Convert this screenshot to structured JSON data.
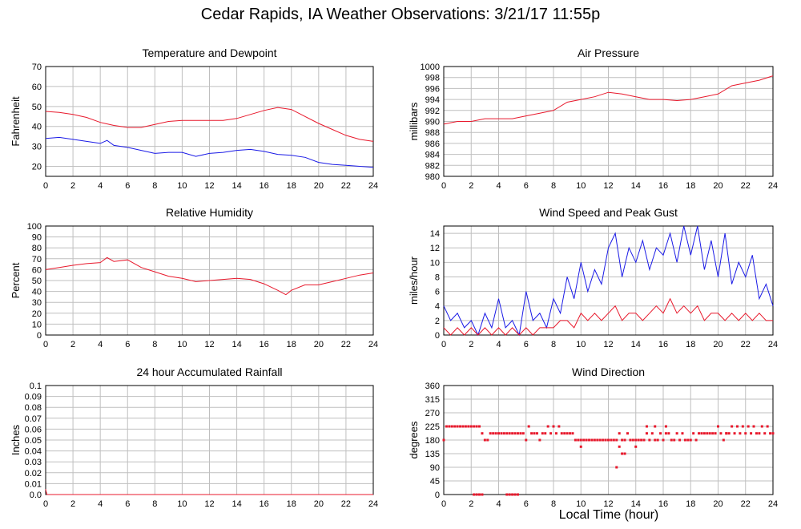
{
  "title": "Cedar Rapids, IA Weather Observations: 3/21/17 11:55p",
  "xaxis_label": "Local Time (hour)",
  "colors": {
    "red": "#e8192c",
    "blue": "#1a1ae6",
    "grid": "#bfbfbf"
  },
  "chart_data": [
    {
      "type": "line",
      "title": "Temperature and Dewpoint",
      "ylabel": "Fahrenheit",
      "xlim": [
        0,
        24
      ],
      "ylim": [
        15,
        70
      ],
      "yticks": [
        20,
        30,
        40,
        50,
        60,
        70
      ],
      "xticks": [
        0,
        2,
        4,
        6,
        8,
        10,
        12,
        14,
        16,
        18,
        20,
        22,
        24
      ],
      "grid": true,
      "series": [
        {
          "color": "red",
          "x": [
            0,
            1,
            2,
            3,
            4,
            5,
            6,
            7,
            8,
            9,
            10,
            11,
            12,
            13,
            14,
            15,
            16,
            17,
            18,
            19,
            20,
            21,
            22,
            23,
            24
          ],
          "y": [
            47.5,
            47,
            46,
            44.5,
            42,
            40.5,
            39.5,
            39.5,
            41,
            42.5,
            43,
            43,
            43,
            43,
            44,
            46,
            48,
            49.5,
            48.5,
            45,
            41.5,
            38.5,
            35.5,
            33.5,
            32.5
          ]
        },
        {
          "color": "blue",
          "x": [
            0,
            1,
            2,
            3,
            4,
            4.5,
            5,
            6,
            7,
            8,
            9,
            10,
            11,
            12,
            13,
            14,
            15,
            16,
            17,
            18,
            19,
            20,
            21,
            22,
            23,
            24
          ],
          "y": [
            34,
            34.5,
            33.5,
            32.5,
            31.5,
            33,
            30.5,
            29.5,
            28,
            26.5,
            27,
            27,
            25,
            26.5,
            27,
            28,
            28.5,
            27.5,
            26,
            25.5,
            24.5,
            22,
            21,
            20.5,
            20,
            19.5
          ]
        }
      ]
    },
    {
      "type": "line",
      "title": "Air Pressure",
      "ylabel": "millibars",
      "xlim": [
        0,
        24
      ],
      "ylim": [
        980,
        1000
      ],
      "yticks": [
        980,
        982,
        984,
        986,
        988,
        990,
        992,
        994,
        996,
        998,
        1000
      ],
      "xticks": [
        0,
        2,
        4,
        6,
        8,
        10,
        12,
        14,
        16,
        18,
        20,
        22,
        24
      ],
      "grid": true,
      "series": [
        {
          "color": "red",
          "x": [
            0,
            1,
            2,
            3,
            4,
            5,
            6,
            7,
            8,
            9,
            10,
            11,
            12,
            13,
            14,
            15,
            16,
            17,
            18,
            19,
            20,
            21,
            22,
            23,
            24
          ],
          "y": [
            989.5,
            990,
            990,
            990.5,
            990.5,
            990.5,
            991,
            991.5,
            992,
            993.5,
            994,
            994.5,
            995.3,
            995,
            994.5,
            994,
            994,
            993.8,
            994,
            994.5,
            995,
            996.5,
            997,
            997.5,
            998.3
          ]
        }
      ]
    },
    {
      "type": "line",
      "title": "Relative Humidity",
      "ylabel": "Percent",
      "xlim": [
        0,
        24
      ],
      "ylim": [
        0,
        100
      ],
      "yticks": [
        0,
        10,
        20,
        30,
        40,
        50,
        60,
        70,
        80,
        90,
        100
      ],
      "xticks": [
        0,
        2,
        4,
        6,
        8,
        10,
        12,
        14,
        16,
        18,
        20,
        22,
        24
      ],
      "grid": true,
      "series": [
        {
          "color": "red",
          "x": [
            0,
            1,
            2,
            3,
            4,
            4.5,
            5,
            6,
            7,
            8,
            9,
            10,
            11,
            12,
            13,
            14,
            15,
            16,
            17,
            17.6,
            18,
            19,
            20,
            21,
            22,
            23,
            24
          ],
          "y": [
            60,
            62,
            64,
            65.5,
            66.5,
            71,
            67.5,
            69,
            62,
            58,
            54,
            52,
            49,
            50,
            51,
            52,
            51,
            47,
            41,
            37,
            41,
            46,
            46,
            49,
            52,
            55,
            57
          ]
        }
      ]
    },
    {
      "type": "line",
      "title": "Wind Speed and Peak Gust",
      "ylabel": "miles/hour",
      "xlim": [
        0,
        24
      ],
      "ylim": [
        0,
        15
      ],
      "yticks": [
        0,
        2,
        4,
        6,
        8,
        10,
        12,
        14
      ],
      "xticks": [
        0,
        2,
        4,
        6,
        8,
        10,
        12,
        14,
        16,
        18,
        20,
        22,
        24
      ],
      "grid": true,
      "series": [
        {
          "color": "blue",
          "x": [
            0,
            0.5,
            1,
            1.5,
            2,
            2.5,
            3,
            3.5,
            4,
            4.5,
            5,
            5.5,
            6,
            6.5,
            7,
            7.5,
            8,
            8.5,
            9,
            9.5,
            10,
            10.5,
            11,
            11.5,
            12,
            12.5,
            13,
            13.5,
            14,
            14.5,
            15,
            15.5,
            16,
            16.5,
            17,
            17.5,
            18,
            18.5,
            19,
            19.5,
            20,
            20.5,
            21,
            21.5,
            22,
            22.5,
            23,
            23.5,
            24
          ],
          "y": [
            4,
            2,
            3,
            1,
            2,
            0,
            3,
            1,
            5,
            1,
            2,
            0,
            6,
            2,
            3,
            1,
            5,
            3,
            8,
            5,
            10,
            6,
            9,
            7,
            12,
            14,
            8,
            12,
            10,
            13,
            9,
            12,
            11,
            14,
            10,
            15,
            11,
            15,
            9,
            13,
            8,
            14,
            7,
            10,
            8,
            11,
            5,
            7,
            4
          ]
        },
        {
          "color": "red",
          "x": [
            0,
            0.5,
            1,
            1.5,
            2,
            2.5,
            3,
            3.5,
            4,
            4.5,
            5,
            5.5,
            6,
            6.5,
            7,
            7.5,
            8,
            8.5,
            9,
            9.5,
            10,
            10.5,
            11,
            11.5,
            12,
            12.5,
            13,
            13.5,
            14,
            14.5,
            15,
            15.5,
            16,
            16.5,
            17,
            17.5,
            18,
            18.5,
            19,
            19.5,
            20,
            20.5,
            21,
            21.5,
            22,
            22.5,
            23,
            23.5,
            24
          ],
          "y": [
            1,
            0,
            1,
            0,
            1,
            0,
            1,
            0,
            1,
            0,
            1,
            0,
            1,
            0,
            1,
            1,
            1,
            2,
            2,
            1,
            3,
            2,
            3,
            2,
            3,
            4,
            2,
            3,
            3,
            2,
            3,
            4,
            3,
            5,
            3,
            4,
            3,
            4,
            2,
            3,
            3,
            2,
            3,
            2,
            3,
            2,
            3,
            2,
            2
          ]
        }
      ]
    },
    {
      "type": "line",
      "title": "24 hour Accumulated Rainfall",
      "ylabel": "Inches",
      "xlim": [
        0,
        24
      ],
      "ylim": [
        0,
        0.1
      ],
      "yticks": [
        0.0,
        0.01,
        0.02,
        0.03,
        0.04,
        0.05,
        0.06,
        0.07,
        0.08,
        0.09,
        0.1
      ],
      "ytick_labels": [
        "0.0",
        "0.01",
        "0.02",
        "0.03",
        "0.04",
        "0.05",
        "0.06",
        "0.07",
        "0.08",
        "0.09",
        "0.1"
      ],
      "xticks": [
        0,
        2,
        4,
        6,
        8,
        10,
        12,
        14,
        16,
        18,
        20,
        22,
        24
      ],
      "grid": true,
      "series": [
        {
          "color": "red",
          "x": [
            0,
            0.05,
            0.1,
            24
          ],
          "y": [
            0.005,
            0.002,
            0,
            0
          ]
        }
      ]
    },
    {
      "type": "scatter",
      "title": "Wind Direction",
      "ylabel": "degrees",
      "xlim": [
        0,
        24
      ],
      "ylim": [
        0,
        360
      ],
      "yticks": [
        0,
        45,
        90,
        135,
        180,
        225,
        270,
        315,
        360
      ],
      "xticks": [
        0,
        2,
        4,
        6,
        8,
        10,
        12,
        14,
        16,
        18,
        20,
        22,
        24
      ],
      "grid": true,
      "series": [
        {
          "color": "red",
          "x": [
            0,
            0.2,
            0.4,
            0.6,
            0.8,
            1.0,
            1.2,
            1.4,
            1.6,
            1.8,
            2.0,
            2.2,
            2.4,
            2.6,
            2.8,
            3.0,
            3.2,
            3.4,
            3.6,
            3.8,
            4.0,
            4.2,
            4.4,
            4.6,
            4.8,
            5.0,
            5.2,
            5.4,
            5.6,
            5.8,
            6.0,
            6.2,
            6.4,
            6.6,
            6.8,
            7.0,
            7.2,
            7.4,
            7.6,
            7.8,
            8.0,
            8.2,
            8.4,
            8.6,
            8.8,
            9.0,
            9.2,
            9.4,
            9.6,
            9.8,
            10.0,
            10.2,
            10.4,
            10.6,
            10.8,
            11.0,
            11.2,
            11.4,
            11.6,
            11.8,
            12.0,
            12.2,
            12.4,
            12.6,
            12.8,
            13.0,
            13.2,
            13.4,
            13.6,
            13.8,
            14.0,
            14.2,
            14.4,
            14.6,
            14.8,
            15.0,
            15.2,
            15.4,
            15.6,
            15.8,
            16.0,
            16.2,
            16.4,
            16.6,
            16.8,
            17.0,
            17.2,
            17.4,
            17.6,
            17.8,
            18.0,
            18.2,
            18.4,
            18.6,
            18.8,
            19.0,
            19.2,
            19.4,
            19.6,
            19.8,
            20.0,
            20.2,
            20.4,
            20.6,
            20.8,
            21.0,
            21.2,
            21.4,
            21.6,
            21.8,
            22.0,
            22.2,
            22.4,
            22.6,
            22.8,
            23.0,
            23.2,
            23.4,
            23.6,
            23.8,
            24.0,
            2.2,
            2.4,
            2.6,
            2.8,
            4.6,
            4.8,
            5.0,
            5.2,
            5.4,
            12.8,
            13.0,
            13.2,
            14.0,
            14.8,
            15.4,
            16.2,
            10.0,
            20.6,
            12.6,
            0.0
          ],
          "y": [
            180,
            225,
            225,
            225,
            225,
            225,
            225,
            225,
            225,
            225,
            225,
            225,
            225,
            225,
            202,
            180,
            180,
            202,
            202,
            202,
            202,
            202,
            202,
            202,
            202,
            202,
            202,
            202,
            202,
            202,
            180,
            225,
            202,
            202,
            202,
            180,
            202,
            202,
            225,
            202,
            225,
            202,
            225,
            202,
            202,
            202,
            202,
            202,
            180,
            180,
            180,
            180,
            180,
            180,
            180,
            180,
            180,
            180,
            180,
            180,
            180,
            180,
            180,
            180,
            202,
            180,
            180,
            202,
            180,
            180,
            180,
            180,
            180,
            180,
            202,
            180,
            202,
            180,
            180,
            202,
            180,
            202,
            202,
            180,
            180,
            202,
            180,
            202,
            180,
            180,
            180,
            202,
            180,
            202,
            202,
            202,
            202,
            202,
            202,
            202,
            225,
            202,
            180,
            202,
            202,
            225,
            202,
            225,
            202,
            225,
            202,
            225,
            202,
            225,
            202,
            202,
            225,
            202,
            225,
            202,
            202,
            0,
            0,
            0,
            0,
            0,
            0,
            0,
            0,
            0,
            158,
            135,
            135,
            158,
            225,
            225,
            225,
            158,
            202,
            90,
            180
          ]
        }
      ]
    }
  ]
}
